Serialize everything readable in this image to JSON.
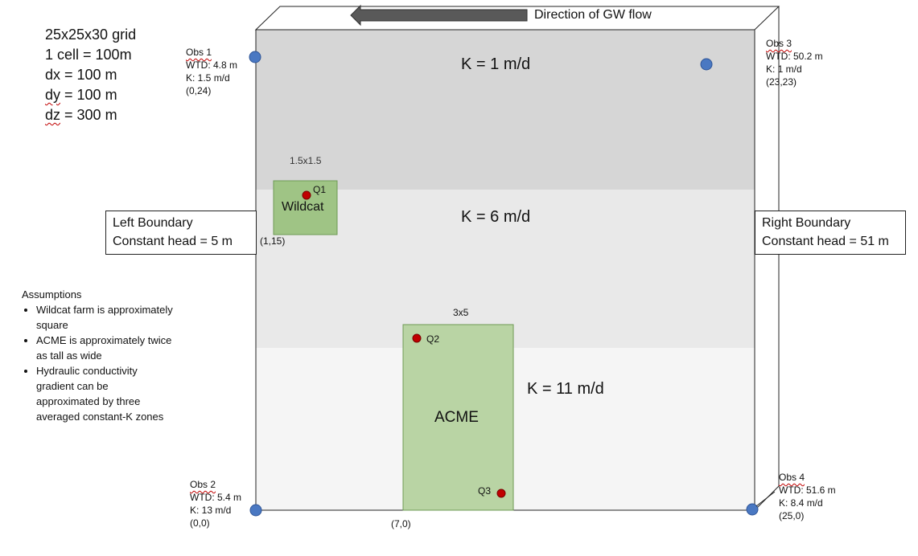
{
  "grid_info": {
    "line1": "25x25x30 grid",
    "line2": "1 cell = 100m",
    "line3": "dx = 100 m",
    "line4_prefix": "dy",
    "line4_suffix": " = 100 m",
    "line5_prefix": "dz",
    "line5_suffix": " = 300 m"
  },
  "flow": {
    "label": "Direction of GW flow"
  },
  "zones": {
    "top": {
      "label": "K = 1 m/d",
      "color": "#d6d6d6"
    },
    "middle": {
      "label": "K = 6 m/d",
      "color": "#e9e9e9"
    },
    "bottom": {
      "label": "K = 11 m/d",
      "color": "#f5f5f5"
    }
  },
  "observations": [
    {
      "name": "Obs 1",
      "wtd": "WTD: 4.8 m",
      "k": "K: 1.5 m/d",
      "coord": "(0,24)"
    },
    {
      "name": "Obs 2",
      "wtd": "WTD: 5.4 m",
      "k": "K: 13 m/d",
      "coord": "(0,0)"
    },
    {
      "name": "Obs 3",
      "wtd": "WTD: 50.2 m",
      "k": "K: 1 m/d",
      "coord": "(23,23)"
    },
    {
      "name": "Obs 4",
      "wtd": "WTD: 51.6 m",
      "k": "K: 8.4 m/d",
      "coord": "(25,0)"
    }
  ],
  "boundaries": {
    "left": {
      "title": "Left Boundary",
      "value": "Constant head = 5 m"
    },
    "right": {
      "title": "Right Boundary",
      "value": "Constant head = 51 m"
    }
  },
  "farms": {
    "wildcat": {
      "name": "Wildcat",
      "size": "1.5x1.5",
      "coord": "(1,15)",
      "well": "Q1"
    },
    "acme": {
      "name": "ACME",
      "size": "3x5",
      "coord": "(7,0)",
      "well_top": "Q2",
      "well_bottom": "Q3"
    }
  },
  "assumptions": {
    "title": "Assumptions",
    "items": [
      "Wildcat farm is approximately square",
      "ACME is approximately twice as tall as wide",
      "Hydraulic conductivity gradient can be approximated by three averaged constant-K zones"
    ]
  },
  "colors": {
    "farm_fill": "#b9d4a4",
    "wildcat_fill": "#9fc485",
    "farm_border": "#6e9a55",
    "obs_point": "#4a78c2",
    "pumping_well": "#c00000",
    "arrow": "#595959"
  }
}
